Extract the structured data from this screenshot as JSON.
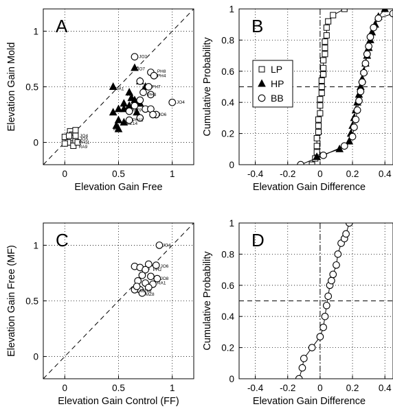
{
  "chart_data": [
    {
      "panel": "A",
      "type": "scatter",
      "xlabel": "Elevation Gain Free",
      "ylabel": "Elevation Gain Mold",
      "xlim": [
        -0.2,
        1.2
      ],
      "ylim": [
        -0.2,
        1.2
      ],
      "xticks": [
        0,
        0.5,
        1
      ],
      "yticks": [
        0,
        0.5,
        1
      ],
      "xtick_labels": [
        "0",
        "0.5",
        "1"
      ],
      "ytick_labels": [
        "0",
        "0.5",
        "1"
      ],
      "grid": "dotted",
      "reference": "dashed identity line",
      "series": [
        {
          "name": "LP",
          "marker": "square",
          "points": [
            {
              "x": 0.05,
              "y": 0.1
            },
            {
              "x": 0.07,
              "y": 0.07
            },
            {
              "x": 0.0,
              "y": 0.05
            },
            {
              "x": 0.1,
              "y": 0.06
            },
            {
              "x": 0.05,
              "y": 0.04
            },
            {
              "x": 0.03,
              "y": 0.0
            },
            {
              "x": 0.1,
              "y": 0.01
            },
            {
              "x": 0.0,
              "y": -0.01
            },
            {
              "x": 0.08,
              "y": -0.03
            },
            {
              "x": 0.12,
              "y": 0.0
            },
            {
              "x": 0.04,
              "y": 0.06
            },
            {
              "x": 0.1,
              "y": 0.11
            }
          ],
          "labels": [
            {
              "text": "JO4",
              "x": 0.14,
              "y": 0.06
            },
            {
              "text": "JO5",
              "x": 0.14,
              "y": 0.03
            },
            {
              "text": "PH11",
              "x": 0.13,
              "y": 0.0
            },
            {
              "text": "RA9",
              "x": 0.13,
              "y": -0.04
            }
          ]
        },
        {
          "name": "HP",
          "marker": "triangle",
          "points": [
            {
              "x": 0.65,
              "y": 0.67
            },
            {
              "x": 0.45,
              "y": 0.5
            },
            {
              "x": 0.55,
              "y": 0.35
            },
            {
              "x": 0.5,
              "y": 0.3
            },
            {
              "x": 0.55,
              "y": 0.3
            },
            {
              "x": 0.45,
              "y": 0.27
            },
            {
              "x": 0.5,
              "y": 0.2
            },
            {
              "x": 0.55,
              "y": 0.18
            },
            {
              "x": 0.5,
              "y": 0.12
            },
            {
              "x": 0.6,
              "y": 0.45
            },
            {
              "x": 0.62,
              "y": 0.4
            },
            {
              "x": 0.7,
              "y": 0.55
            },
            {
              "x": 0.75,
              "y": 0.5
            },
            {
              "x": 0.7,
              "y": 0.35
            },
            {
              "x": 0.67,
              "y": 0.27
            },
            {
              "x": 0.6,
              "y": 0.33
            },
            {
              "x": 0.65,
              "y": 0.38
            },
            {
              "x": 0.48,
              "y": 0.15
            }
          ],
          "labels": [
            {
              "text": "JO7",
              "x": 0.67,
              "y": 0.66
            },
            {
              "text": "RA1",
              "x": 0.47,
              "y": 0.48
            },
            {
              "text": "MZ14",
              "x": 0.57,
              "y": 0.17
            },
            {
              "text": "MZ",
              "x": 0.45,
              "y": 0.12
            },
            {
              "text": "RA",
              "x": 0.58,
              "y": 0.43
            }
          ]
        },
        {
          "name": "BB",
          "marker": "circle",
          "points": [
            {
              "x": 0.65,
              "y": 0.77
            },
            {
              "x": 0.8,
              "y": 0.63
            },
            {
              "x": 0.83,
              "y": 0.6
            },
            {
              "x": 0.7,
              "y": 0.55
            },
            {
              "x": 0.78,
              "y": 0.5
            },
            {
              "x": 0.73,
              "y": 0.45
            },
            {
              "x": 0.8,
              "y": 0.43
            },
            {
              "x": 0.7,
              "y": 0.38
            },
            {
              "x": 0.65,
              "y": 0.33
            },
            {
              "x": 0.75,
              "y": 0.3
            },
            {
              "x": 0.6,
              "y": 0.28
            },
            {
              "x": 0.85,
              "y": 0.25
            },
            {
              "x": 0.7,
              "y": 0.22
            },
            {
              "x": 0.6,
              "y": 0.2
            },
            {
              "x": 0.8,
              "y": 0.3
            },
            {
              "x": 0.82,
              "y": 0.25
            },
            {
              "x": 1.0,
              "y": 0.36
            }
          ],
          "labels": [
            {
              "text": "JO2",
              "x": 0.69,
              "y": 0.77
            },
            {
              "text": "PH8",
              "x": 0.86,
              "y": 0.64
            },
            {
              "text": "PH4",
              "x": 0.86,
              "y": 0.6
            },
            {
              "text": "PH7",
              "x": 0.81,
              "y": 0.5
            },
            {
              "text": "PH3",
              "x": 0.77,
              "y": 0.43
            },
            {
              "text": "JO4",
              "x": 1.04,
              "y": 0.36
            },
            {
              "text": "MZ9",
              "x": 0.63,
              "y": 0.29
            },
            {
              "text": "JO6",
              "x": 0.87,
              "y": 0.25
            },
            {
              "text": "PH11",
              "x": 0.63,
              "y": 0.2
            }
          ]
        }
      ]
    },
    {
      "panel": "B",
      "type": "line",
      "xlabel": "Elevation Gain Difference",
      "ylabel": "Cumulative Probability",
      "xlim": [
        -0.5,
        0.45
      ],
      "ylim": [
        0,
        1
      ],
      "xticks": [
        -0.4,
        -0.2,
        0,
        0.2,
        0.4
      ],
      "yticks": [
        0,
        0.2,
        0.4,
        0.6,
        0.8,
        1
      ],
      "xtick_labels": [
        "-0.4",
        "-0.2",
        "0",
        "0.2",
        "0.4"
      ],
      "ytick_labels": [
        "0",
        "0.2",
        "0.4",
        "0.6",
        "0.8",
        "1"
      ],
      "grid": "dotted",
      "reference_lines": [
        {
          "axis": "x",
          "value": 0,
          "style": "dash-dot"
        },
        {
          "axis": "y",
          "value": 0.5,
          "style": "dashed"
        }
      ],
      "legend": {
        "placement": "center-left",
        "entries": [
          "LP",
          "HP",
          "BB"
        ]
      },
      "series": [
        {
          "name": "LP",
          "marker": "square",
          "x": [
            -0.05,
            -0.03,
            -0.02,
            -0.02,
            -0.02,
            -0.01,
            -0.01,
            -0.01,
            0.0,
            0.0,
            0.0,
            0.01,
            0.01,
            0.01,
            0.02,
            0.02,
            0.02,
            0.03,
            0.03,
            0.03,
            0.04,
            0.04,
            0.05,
            0.08,
            0.15
          ],
          "y": [
            0.0,
            0.04,
            0.08,
            0.12,
            0.17,
            0.21,
            0.25,
            0.29,
            0.33,
            0.38,
            0.42,
            0.46,
            0.5,
            0.54,
            0.58,
            0.62,
            0.67,
            0.71,
            0.75,
            0.79,
            0.83,
            0.88,
            0.92,
            0.96,
            1.0
          ]
        },
        {
          "name": "HP",
          "marker": "triangle",
          "x": [
            -0.02,
            0.12,
            0.18,
            0.19,
            0.2,
            0.21,
            0.22,
            0.23,
            0.24,
            0.25,
            0.26,
            0.27,
            0.28,
            0.29,
            0.3,
            0.31,
            0.32,
            0.34,
            0.36,
            0.4
          ],
          "y": [
            0.05,
            0.1,
            0.15,
            0.2,
            0.25,
            0.3,
            0.35,
            0.4,
            0.45,
            0.5,
            0.55,
            0.6,
            0.65,
            0.7,
            0.75,
            0.8,
            0.85,
            0.9,
            0.95,
            1.0
          ]
        },
        {
          "name": "BB",
          "marker": "circle",
          "x": [
            -0.12,
            0.02,
            0.15,
            0.2,
            0.21,
            0.22,
            0.23,
            0.24,
            0.25,
            0.26,
            0.27,
            0.28,
            0.29,
            0.3,
            0.31,
            0.33,
            0.36,
            0.45
          ],
          "y": [
            0.0,
            0.06,
            0.12,
            0.18,
            0.24,
            0.29,
            0.35,
            0.41,
            0.47,
            0.53,
            0.59,
            0.65,
            0.71,
            0.76,
            0.82,
            0.88,
            0.94,
            0.97
          ]
        }
      ]
    },
    {
      "panel": "C",
      "type": "scatter",
      "xlabel": "Elevation Gain Control (FF)",
      "ylabel": "Elevation Gain Free (MF)",
      "xlim": [
        -0.2,
        1.2
      ],
      "ylim": [
        -0.2,
        1.2
      ],
      "xticks": [
        0,
        0.5,
        1
      ],
      "yticks": [
        0,
        0.5,
        1
      ],
      "xtick_labels": [
        "0",
        "0.5",
        "1"
      ],
      "ytick_labels": [
        "0",
        "0.5",
        "1"
      ],
      "grid": "dotted",
      "reference": "dashed identity line",
      "series": [
        {
          "name": "",
          "marker": "circle",
          "points": [
            {
              "x": 0.88,
              "y": 1.0
            },
            {
              "x": 0.65,
              "y": 0.81
            },
            {
              "x": 0.7,
              "y": 0.8
            },
            {
              "x": 0.78,
              "y": 0.83
            },
            {
              "x": 0.85,
              "y": 0.82
            },
            {
              "x": 0.75,
              "y": 0.78
            },
            {
              "x": 0.72,
              "y": 0.73
            },
            {
              "x": 0.8,
              "y": 0.72
            },
            {
              "x": 0.86,
              "y": 0.7
            },
            {
              "x": 0.68,
              "y": 0.68
            },
            {
              "x": 0.75,
              "y": 0.66
            },
            {
              "x": 0.82,
              "y": 0.65
            },
            {
              "x": 0.7,
              "y": 0.6
            },
            {
              "x": 0.65,
              "y": 0.6
            },
            {
              "x": 0.72,
              "y": 0.57
            },
            {
              "x": 0.78,
              "y": 0.62
            },
            {
              "x": 0.67,
              "y": 0.63
            }
          ],
          "labels": [
            {
              "text": "JO4",
              "x": 0.91,
              "y": 1.0
            },
            {
              "text": "JO6",
              "x": 0.89,
              "y": 0.81
            },
            {
              "text": "PH2",
              "x": 0.82,
              "y": 0.78
            },
            {
              "text": "JO8",
              "x": 0.89,
              "y": 0.7
            },
            {
              "text": "RA1",
              "x": 0.86,
              "y": 0.66
            },
            {
              "text": "MZ13",
              "x": 0.7,
              "y": 0.59
            },
            {
              "text": "MZ8",
              "x": 0.75,
              "y": 0.56
            }
          ]
        }
      ]
    },
    {
      "panel": "D",
      "type": "line",
      "xlabel": "Elevation Gain Difference",
      "ylabel": "Cumulative Probability",
      "xlim": [
        -0.5,
        0.45
      ],
      "ylim": [
        0,
        1
      ],
      "xticks": [
        -0.4,
        -0.2,
        0,
        0.2,
        0.4
      ],
      "yticks": [
        0,
        0.2,
        0.4,
        0.6,
        0.8,
        1
      ],
      "xtick_labels": [
        "-0.4",
        "-0.2",
        "0",
        "0.2",
        "0.4"
      ],
      "ytick_labels": [
        "0",
        "0.2",
        "0.4",
        "0.6",
        "0.8",
        "1"
      ],
      "grid": "dotted",
      "reference_lines": [
        {
          "axis": "x",
          "value": 0,
          "style": "dash-dot"
        },
        {
          "axis": "y",
          "value": 0.5,
          "style": "dashed"
        }
      ],
      "series": [
        {
          "name": "",
          "marker": "circle",
          "x": [
            -0.13,
            -0.11,
            -0.1,
            -0.05,
            0.0,
            0.02,
            0.03,
            0.04,
            0.05,
            0.06,
            0.07,
            0.08,
            0.1,
            0.11,
            0.13,
            0.15,
            0.16,
            0.18
          ],
          "y": [
            0.0,
            0.07,
            0.13,
            0.2,
            0.27,
            0.33,
            0.4,
            0.47,
            0.53,
            0.6,
            0.63,
            0.67,
            0.73,
            0.8,
            0.87,
            0.9,
            0.93,
            1.0
          ]
        }
      ]
    }
  ]
}
